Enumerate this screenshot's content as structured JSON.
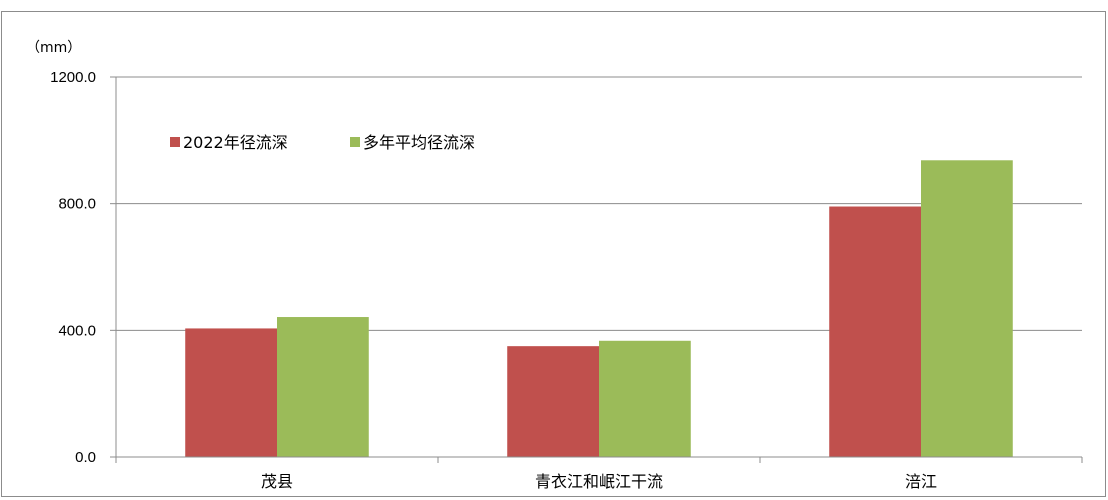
{
  "chart_data": {
    "type": "bar",
    "unit_label": "（mm）",
    "categories": [
      "茂县",
      "青衣江和岷江干流",
      "涪江"
    ],
    "series": [
      {
        "name": "2022年径流深",
        "color": "#c0504d",
        "values": [
          406.0,
          350.0,
          791.0
        ]
      },
      {
        "name": "多年平均径流深",
        "color": "#9bbb59",
        "values": [
          442.0,
          367.0,
          937.0
        ]
      }
    ],
    "ylim": [
      0,
      1200
    ],
    "yticks": [
      "0.0",
      "400.0",
      "800.0",
      "1200.0"
    ],
    "ytick_values": [
      0,
      400,
      800,
      1200
    ],
    "grid": true,
    "legend_position": "top-left"
  }
}
